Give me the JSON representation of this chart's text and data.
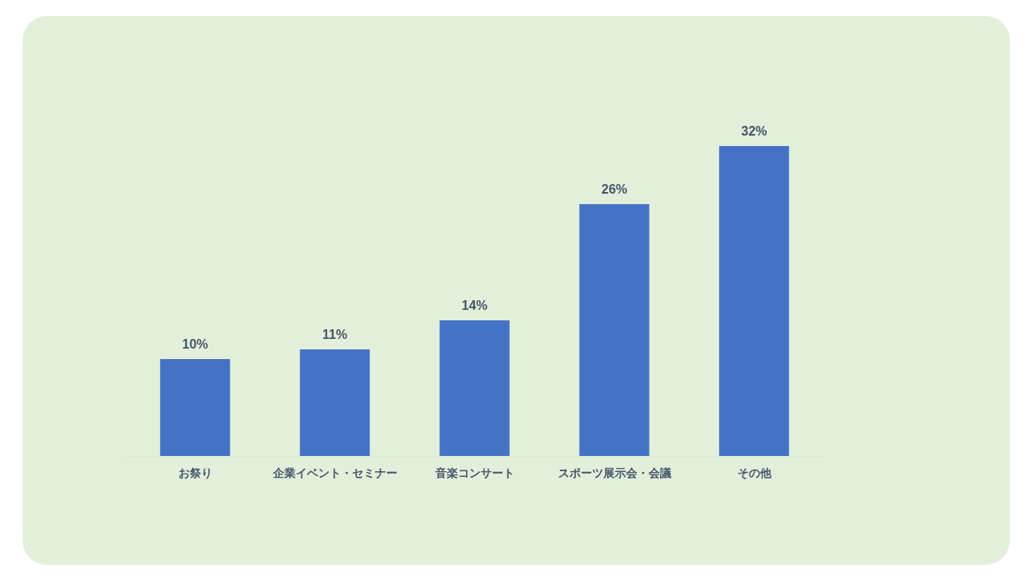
{
  "chart_data": {
    "type": "bar",
    "categories": [
      "お祭り",
      "企業イベント・セミナー",
      "音楽コンサート",
      "スポーツ展示会・会議",
      "その他"
    ],
    "values": [
      10,
      11,
      14,
      26,
      32
    ],
    "value_labels": [
      "10%",
      "11%",
      "14%",
      "26%",
      "32%"
    ],
    "color": "#4472c4"
  }
}
